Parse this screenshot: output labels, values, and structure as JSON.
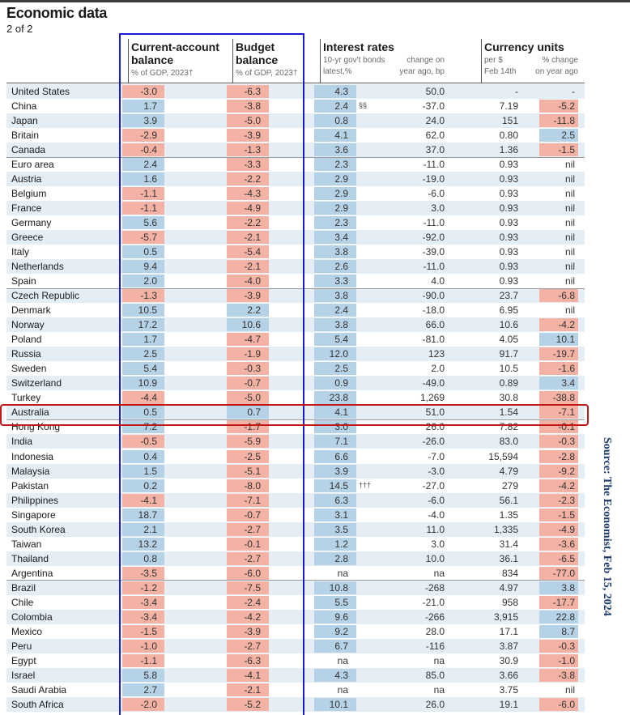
{
  "title": "Economic data",
  "subtitle": "2 of 2",
  "source": "Source: The Economist, Feb 15, 2024",
  "colors": {
    "positive": "#b6d2e6",
    "negative": "#f3b2a4",
    "band": "#e6eef5",
    "highlight_box": "#c01818",
    "column_box": "#1a1ad6"
  },
  "chart_data": {
    "type": "table",
    "columns": [
      {
        "key": "current_account",
        "group": "Current-account balance",
        "sub": "% of GDP, 2023†"
      },
      {
        "key": "budget",
        "group": "Budget balance",
        "sub": "% of GDP, 2023†"
      },
      {
        "key": "bond_yield",
        "group": "Interest rates",
        "sub": "10-yr gov't bonds latest,%"
      },
      {
        "key": "bond_change",
        "group": "Interest rates",
        "sub": "change on year ago, bp"
      },
      {
        "key": "per_dollar",
        "group": "Currency units",
        "sub": "per $ Feb 14th"
      },
      {
        "key": "fx_change",
        "group": "Currency units",
        "sub": "% change on year ago"
      }
    ],
    "headers": {
      "ca_title_1": "Current-account",
      "ca_title_2": "balance",
      "ca_sub": "% of GDP, 2023†",
      "bb_title_1": "Budget",
      "bb_title_2": "balance",
      "bb_sub": "% of GDP, 2023†",
      "ir_title": "Interest rates",
      "ir_sub1_a": "10-yr gov't bonds",
      "ir_sub1_b": "latest,%",
      "ir_sub2_a": "change on",
      "ir_sub2_b": "year ago, bp",
      "cu_title": "Currency units",
      "cu_sub1_a": "per $",
      "cu_sub1_b": "Feb 14th",
      "cu_sub2_a": "% change",
      "cu_sub2_b": "on year ago"
    },
    "rows": [
      {
        "country": "United States",
        "ca": "-3.0",
        "bb": "-6.3",
        "ir": "4.3",
        "irc": "50.0",
        "fx": "-",
        "fxc": "-"
      },
      {
        "country": "China",
        "ca": "1.7",
        "bb": "-3.8",
        "ir": "2.4",
        "irnote": "§§",
        "irc": "-37.0",
        "fx": "7.19",
        "fxc": "-5.2"
      },
      {
        "country": "Japan",
        "ca": "3.9",
        "bb": "-5.0",
        "ir": "0.8",
        "irc": "24.0",
        "fx": "151",
        "fxc": "-11.8"
      },
      {
        "country": "Britain",
        "ca": "-2.9",
        "bb": "-3.9",
        "ir": "4.1",
        "irc": "62.0",
        "fx": "0.80",
        "fxc": "2.5"
      },
      {
        "country": "Canada",
        "ca": "-0.4",
        "bb": "-1.3",
        "ir": "3.6",
        "irc": "37.0",
        "fx": "1.36",
        "fxc": "-1.5"
      },
      {
        "country": "Euro area",
        "ca": "2.4",
        "bb": "-3.3",
        "ir": "2.3",
        "irc": "-11.0",
        "fx": "0.93",
        "fxc": "nil"
      },
      {
        "country": "Austria",
        "ca": "1.6",
        "bb": "-2.2",
        "ir": "2.9",
        "irc": "-19.0",
        "fx": "0.93",
        "fxc": "nil"
      },
      {
        "country": "Belgium",
        "ca": "-1.1",
        "bb": "-4.3",
        "ir": "2.9",
        "irc": "-6.0",
        "fx": "0.93",
        "fxc": "nil"
      },
      {
        "country": "France",
        "ca": "-1.1",
        "bb": "-4.9",
        "ir": "2.9",
        "irc": "3.0",
        "fx": "0.93",
        "fxc": "nil"
      },
      {
        "country": "Germany",
        "ca": "5.6",
        "bb": "-2.2",
        "ir": "2.3",
        "irc": "-11.0",
        "fx": "0.93",
        "fxc": "nil"
      },
      {
        "country": "Greece",
        "ca": "-5.7",
        "bb": "-2.1",
        "ir": "3.4",
        "irc": "-92.0",
        "fx": "0.93",
        "fxc": "nil"
      },
      {
        "country": "Italy",
        "ca": "0.5",
        "bb": "-5.4",
        "ir": "3.8",
        "irc": "-39.0",
        "fx": "0.93",
        "fxc": "nil"
      },
      {
        "country": "Netherlands",
        "ca": "9.4",
        "bb": "-2.1",
        "ir": "2.6",
        "irc": "-11.0",
        "fx": "0.93",
        "fxc": "nil"
      },
      {
        "country": "Spain",
        "ca": "2.0",
        "bb": "-4.0",
        "ir": "3.3",
        "irc": "4.0",
        "fx": "0.93",
        "fxc": "nil"
      },
      {
        "country": "Czech Republic",
        "ca": "-1.3",
        "bb": "-3.9",
        "ir": "3.8",
        "irc": "-90.0",
        "fx": "23.7",
        "fxc": "-6.8"
      },
      {
        "country": "Denmark",
        "ca": "10.5",
        "bb": "2.2",
        "ir": "2.4",
        "irc": "-18.0",
        "fx": "6.95",
        "fxc": "nil"
      },
      {
        "country": "Norway",
        "ca": "17.2",
        "bb": "10.6",
        "ir": "3.8",
        "irc": "66.0",
        "fx": "10.6",
        "fxc": "-4.2"
      },
      {
        "country": "Poland",
        "ca": "1.7",
        "bb": "-4.7",
        "ir": "5.4",
        "irc": "-81.0",
        "fx": "4.05",
        "fxc": "10.1"
      },
      {
        "country": "Russia",
        "ca": "2.5",
        "bb": "-1.9",
        "ir": "12.0",
        "irc": "123",
        "fx": "91.7",
        "fxc": "-19.7"
      },
      {
        "country": "Sweden",
        "ca": "5.4",
        "bb": "-0.3",
        "ir": "2.5",
        "irc": "2.0",
        "fx": "10.5",
        "fxc": "-1.6"
      },
      {
        "country": "Switzerland",
        "ca": "10.9",
        "bb": "-0.7",
        "ir": "0.9",
        "irc": "-49.0",
        "fx": "0.89",
        "fxc": "3.4"
      },
      {
        "country": "Turkey",
        "ca": "-4.4",
        "bb": "-5.0",
        "ir": "23.8",
        "irc": "1,269",
        "fx": "30.8",
        "fxc": "-38.8"
      },
      {
        "country": "Australia",
        "ca": "0.5",
        "bb": "0.7",
        "ir": "4.1",
        "irc": "51.0",
        "fx": "1.54",
        "fxc": "-7.1"
      },
      {
        "country": "Hong Kong",
        "ca": "7.2",
        "bb": "-1.7",
        "ir": "3.0",
        "irc": "26.0",
        "fx": "7.82",
        "fxc": "-0.1"
      },
      {
        "country": "India",
        "ca": "-0.5",
        "bb": "-5.9",
        "ir": "7.1",
        "irc": "-26.0",
        "fx": "83.0",
        "fxc": "-0.3"
      },
      {
        "country": "Indonesia",
        "ca": "0.4",
        "bb": "-2.5",
        "ir": "6.6",
        "irc": "-7.0",
        "fx": "15,594",
        "fxc": "-2.8"
      },
      {
        "country": "Malaysia",
        "ca": "1.5",
        "bb": "-5.1",
        "ir": "3.9",
        "irc": "-3.0",
        "fx": "4.79",
        "fxc": "-9.2"
      },
      {
        "country": "Pakistan",
        "ca": "0.2",
        "bb": "-8.0",
        "ir": "14.5",
        "irnote": "†††",
        "irc": "-27.0",
        "fx": "279",
        "fxc": "-4.2"
      },
      {
        "country": "Philippines",
        "ca": "-4.1",
        "bb": "-7.1",
        "ir": "6.3",
        "irc": "-6.0",
        "fx": "56.1",
        "fxc": "-2.3"
      },
      {
        "country": "Singapore",
        "ca": "18.7",
        "bb": "-0.7",
        "ir": "3.1",
        "irc": "-4.0",
        "fx": "1.35",
        "fxc": "-1.5"
      },
      {
        "country": "South Korea",
        "ca": "2.1",
        "bb": "-2.7",
        "ir": "3.5",
        "irc": "11.0",
        "fx": "1,335",
        "fxc": "-4.9"
      },
      {
        "country": "Taiwan",
        "ca": "13.2",
        "bb": "-0.1",
        "ir": "1.2",
        "irc": "3.0",
        "fx": "31.4",
        "fxc": "-3.6"
      },
      {
        "country": "Thailand",
        "ca": "0.8",
        "bb": "-2.7",
        "ir": "2.8",
        "irc": "10.0",
        "fx": "36.1",
        "fxc": "-6.5"
      },
      {
        "country": "Argentina",
        "ca": "-3.5",
        "bb": "-6.0",
        "ir": "na",
        "irc": "na",
        "fx": "834",
        "fxc": "-77.0"
      },
      {
        "country": "Brazil",
        "ca": "-1.2",
        "bb": "-7.5",
        "ir": "10.8",
        "irc": "-268",
        "fx": "4.97",
        "fxc": "3.8"
      },
      {
        "country": "Chile",
        "ca": "-3.4",
        "bb": "-2.4",
        "ir": "5.5",
        "irc": "-21.0",
        "fx": "958",
        "fxc": "-17.7"
      },
      {
        "country": "Colombia",
        "ca": "-3.4",
        "bb": "-4.2",
        "ir": "9.6",
        "irc": "-266",
        "fx": "3,915",
        "fxc": "22.8"
      },
      {
        "country": "Mexico",
        "ca": "-1.5",
        "bb": "-3.9",
        "ir": "9.2",
        "irc": "28.0",
        "fx": "17.1",
        "fxc": "8.7"
      },
      {
        "country": "Peru",
        "ca": "-1.0",
        "bb": "-2.7",
        "ir": "6.7",
        "irc": "-116",
        "fx": "3.87",
        "fxc": "-0.3"
      },
      {
        "country": "Egypt",
        "ca": "-1.1",
        "bb": "-6.3",
        "ir": "na",
        "irc": "na",
        "fx": "30.9",
        "fxc": "-1.0"
      },
      {
        "country": "Israel",
        "ca": "5.8",
        "bb": "-4.1",
        "ir": "4.3",
        "irc": "85.0",
        "fx": "3.66",
        "fxc": "-3.8"
      },
      {
        "country": "Saudi Arabia",
        "ca": "2.7",
        "bb": "-2.1",
        "ir": "na",
        "irc": "na",
        "fx": "3.75",
        "fxc": "nil"
      },
      {
        "country": "South Africa",
        "ca": "-2.0",
        "bb": "-5.2",
        "ir": "10.1",
        "irc": "26.0",
        "fx": "19.1",
        "fxc": "-6.0"
      }
    ],
    "highlighted_row": "Australia",
    "highlighted_columns": [
      "Current-account balance",
      "Budget balance"
    ]
  }
}
